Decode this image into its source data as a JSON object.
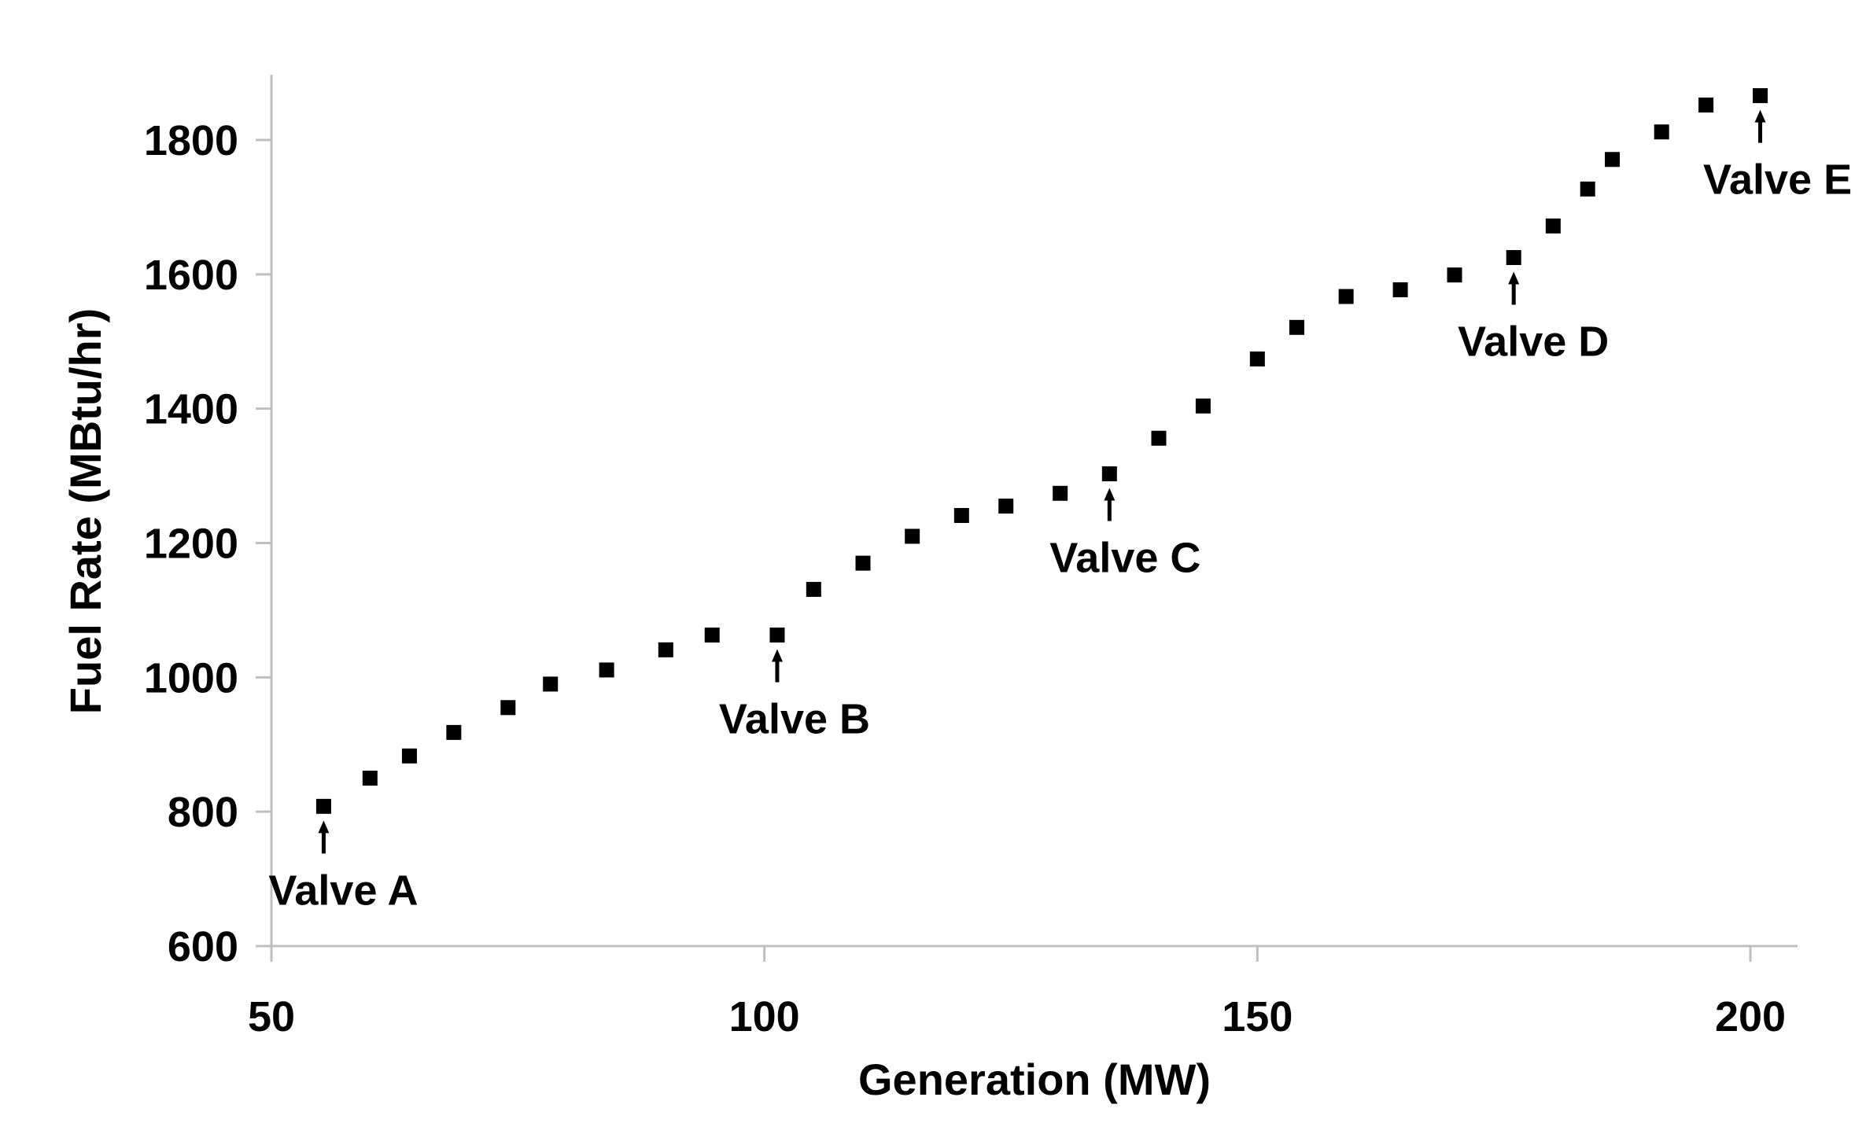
{
  "chart_data": {
    "type": "scatter",
    "title": "",
    "xlabel": "Generation (MW)",
    "ylabel": "Fuel Rate (MBtu/hr)",
    "xlim": [
      50,
      205
    ],
    "ylim": [
      600,
      1900
    ],
    "x_ticks": [
      50,
      100,
      150,
      200
    ],
    "y_ticks": [
      600,
      800,
      1000,
      1200,
      1400,
      1600,
      1800
    ],
    "grid": false,
    "legend": "none",
    "marker": "square",
    "marker_color": "#000000",
    "series": [
      {
        "name": "Fuel Rate",
        "points": [
          [
            55.3,
            808
          ],
          [
            60.0,
            850
          ],
          [
            64.0,
            883
          ],
          [
            68.5,
            918
          ],
          [
            74.0,
            955
          ],
          [
            78.3,
            990
          ],
          [
            84.0,
            1011
          ],
          [
            90.0,
            1041
          ],
          [
            94.7,
            1063
          ],
          [
            101.3,
            1063
          ],
          [
            105.0,
            1131
          ],
          [
            110.0,
            1170
          ],
          [
            115.0,
            1210
          ],
          [
            120.0,
            1241
          ],
          [
            124.5,
            1255
          ],
          [
            130.0,
            1274
          ],
          [
            135.0,
            1303
          ],
          [
            140.0,
            1356
          ],
          [
            144.5,
            1404
          ],
          [
            150.0,
            1474
          ],
          [
            154.0,
            1521
          ],
          [
            159.0,
            1567
          ],
          [
            164.5,
            1577
          ],
          [
            170.0,
            1599
          ],
          [
            176.0,
            1625
          ],
          [
            180.0,
            1672
          ],
          [
            183.5,
            1727
          ],
          [
            186.0,
            1771
          ],
          [
            191.0,
            1812
          ],
          [
            195.5,
            1852
          ],
          [
            201.0,
            1866
          ]
        ]
      }
    ],
    "annotations": [
      {
        "text": "Valve A",
        "x": 55.3,
        "y": 808
      },
      {
        "text": "Valve B",
        "x": 101.3,
        "y": 1063
      },
      {
        "text": "Valve C",
        "x": 135.0,
        "y": 1303
      },
      {
        "text": "Valve D",
        "x": 176.0,
        "y": 1625
      },
      {
        "text": "Valve E",
        "x": 201.0,
        "y": 1866
      }
    ]
  }
}
